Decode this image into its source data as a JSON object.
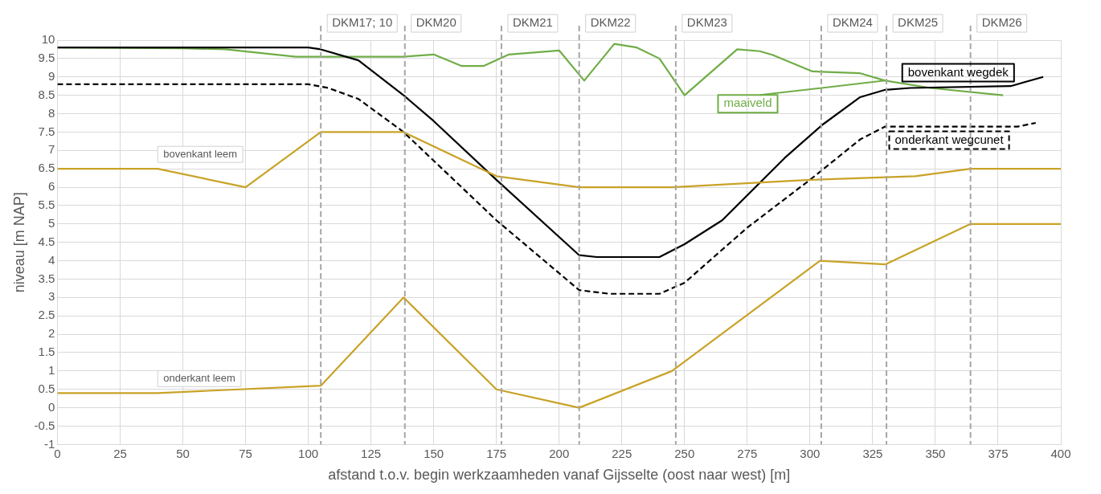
{
  "chart_data": {
    "type": "line",
    "xlabel": "afstand t.o.v. begin werkzaamheden vanaf Gijsselte (oost naar west) [m]",
    "ylabel": "niveau [m NAP]",
    "xlim": [
      0,
      400
    ],
    "xticks": [
      0,
      25,
      50,
      75,
      100,
      125,
      150,
      175,
      200,
      225,
      250,
      275,
      300,
      325,
      350,
      375,
      400
    ],
    "ylim": [
      -1,
      10
    ],
    "yticks": [
      -1,
      -0.5,
      0,
      0.5,
      1,
      1.5,
      2,
      2.5,
      3,
      3.5,
      4,
      4.5,
      5,
      5.5,
      6,
      6.5,
      7,
      7.5,
      8,
      8.5,
      9,
      9.5,
      10
    ],
    "grid": true,
    "legend": false,
    "marker": "none",
    "series": [
      {
        "name": "maaiveld",
        "color": "#70ad47",
        "line_style": "solid",
        "x": [
          0,
          50,
          67,
          95,
          120,
          138,
          150,
          161,
          170,
          180,
          200,
          210,
          222,
          231,
          240,
          250,
          271,
          280,
          285,
          301,
          320,
          330,
          348,
          377
        ],
        "values": [
          9.8,
          9.78,
          9.75,
          9.55,
          9.55,
          9.55,
          9.61,
          9.3,
          9.3,
          9.61,
          9.72,
          8.9,
          9.9,
          9.8,
          9.5,
          8.5,
          9.75,
          9.7,
          9.6,
          9.15,
          9.1,
          8.9,
          8.7,
          8.5
        ]
      },
      {
        "name": "bovenkant wegdek",
        "color": "#000000",
        "line_style": "solid",
        "x": [
          0,
          100,
          105,
          120,
          138,
          150,
          175,
          208,
          215,
          240,
          250,
          265,
          290,
          305,
          320,
          330,
          340,
          380,
          393
        ],
        "values": [
          9.8,
          9.8,
          9.75,
          9.45,
          8.5,
          7.8,
          6.2,
          4.15,
          4.1,
          4.1,
          4.45,
          5.1,
          6.8,
          7.7,
          8.45,
          8.65,
          8.7,
          8.75,
          9.0
        ]
      },
      {
        "name": "onderkant wegcunet",
        "color": "#000000",
        "line_style": "dashed",
        "x": [
          0,
          100,
          108,
          120,
          138,
          175,
          208,
          220,
          240,
          250,
          275,
          300,
          320,
          330,
          383,
          390
        ],
        "values": [
          8.8,
          8.8,
          8.7,
          8.4,
          7.5,
          5.1,
          3.2,
          3.1,
          3.1,
          3.4,
          4.9,
          6.2,
          7.3,
          7.65,
          7.65,
          7.75
        ]
      },
      {
        "name": "bovenkant leem",
        "color": "#c9a227",
        "line_style": "solid",
        "x": [
          0,
          40,
          75,
          105,
          138,
          175,
          208,
          245,
          300,
          342,
          364,
          400
        ],
        "values": [
          6.5,
          6.5,
          6.0,
          7.5,
          7.5,
          6.3,
          6.0,
          6.0,
          6.2,
          6.3,
          6.5,
          6.5
        ]
      },
      {
        "name": "onderkant leem",
        "color": "#c9a227",
        "line_style": "solid",
        "x": [
          0,
          40,
          105,
          138,
          175,
          208,
          245,
          304,
          330,
          364,
          400
        ],
        "values": [
          0.4,
          0.4,
          0.6,
          3.0,
          0.5,
          0.0,
          1.0,
          4.0,
          3.9,
          5.0,
          5.0
        ]
      }
    ],
    "ref_lines": [
      {
        "axis": "x",
        "value": 105,
        "label": "DKM17; 10",
        "color": "#a6a6a6",
        "line_style": "dashed"
      },
      {
        "axis": "x",
        "value": 138.5,
        "label": "DKM20",
        "color": "#a6a6a6",
        "line_style": "dashed"
      },
      {
        "axis": "x",
        "value": 177,
        "label": "DKM21",
        "color": "#a6a6a6",
        "line_style": "dashed"
      },
      {
        "axis": "x",
        "value": 208,
        "label": "DKM22",
        "color": "#a6a6a6",
        "line_style": "dashed"
      },
      {
        "axis": "x",
        "value": 246.5,
        "label": "DKM23",
        "color": "#a6a6a6",
        "line_style": "dashed"
      },
      {
        "axis": "x",
        "value": 304.5,
        "label": "DKM24",
        "color": "#a6a6a6",
        "line_style": "dashed"
      },
      {
        "axis": "x",
        "value": 330.5,
        "label": "DKM25",
        "color": "#a6a6a6",
        "line_style": "dashed"
      },
      {
        "axis": "x",
        "value": 364,
        "label": "DKM26",
        "color": "#a6a6a6",
        "line_style": "dashed"
      }
    ]
  }
}
